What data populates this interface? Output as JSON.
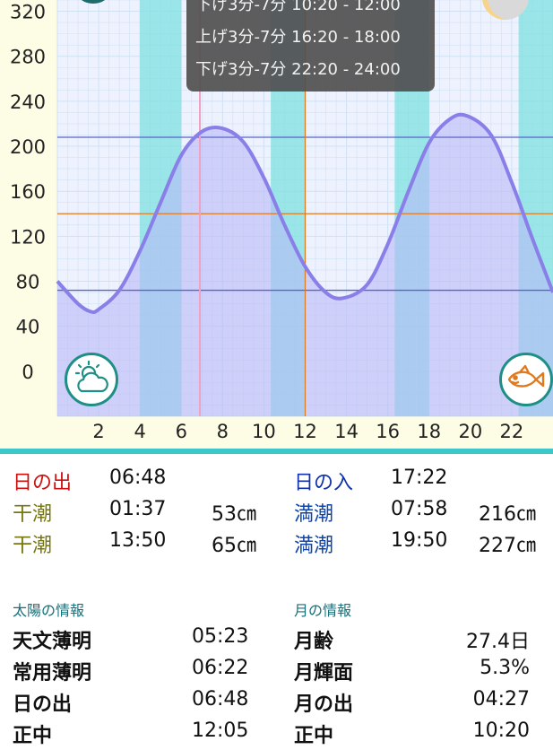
{
  "chart_data": {
    "type": "area",
    "x": [
      0,
      1,
      1.617,
      2,
      3,
      4,
      5,
      6,
      7,
      7.967,
      9,
      10,
      11,
      12,
      13,
      13.833,
      15,
      16,
      17,
      18,
      19,
      19.833,
      21,
      22,
      23,
      24
    ],
    "y": [
      80,
      60,
      53,
      55,
      72,
      107,
      150,
      192,
      213,
      216,
      204,
      172,
      130,
      93,
      70,
      65,
      77,
      113,
      160,
      203,
      224,
      227,
      210,
      168,
      118,
      70
    ],
    "xlim": [
      0,
      24
    ],
    "ylim": [
      -40,
      330
    ],
    "xticks": [
      "2",
      "4",
      "6",
      "8",
      "10",
      "12",
      "14",
      "16",
      "18",
      "20",
      "22"
    ],
    "yticks": [
      "320",
      "280",
      "240",
      "200",
      "160",
      "120",
      "80",
      "40",
      "0"
    ],
    "hlines": [
      {
        "y": 208,
        "color": "#5b63c8"
      },
      {
        "y": 140,
        "color": "#e07a1f"
      },
      {
        "y": 72,
        "color": "#5b63c8"
      }
    ],
    "current_time_line": 6.9,
    "noon_line": 12,
    "shaded_periods": [
      [
        4,
        6
      ],
      [
        10.333,
        12
      ],
      [
        16.333,
        18
      ],
      [
        22.333,
        24
      ]
    ],
    "colors": {
      "curve": "#8a7fe8",
      "fill": "#b9b9f7",
      "shade": "#7de0e0",
      "grid": "#cfe1f3",
      "plot_bg": "#eef2ff"
    }
  },
  "tooltip": {
    "lines": [
      "下げ3分-7分 10:20 - 12:00",
      "上げ3分-7分 16:20 - 18:00",
      "下げ3分-7分 22:20 - 24:00"
    ]
  },
  "icons": {
    "weather": "partly-cloudy-icon",
    "fish": "fish-icon",
    "moon": "moon-phase-icon"
  },
  "tide_table": {
    "sunrise_label": "日の出",
    "sunrise_time": "06:48",
    "sunset_label": "日の入",
    "sunset_time": "17:22",
    "low1_label": "干潮",
    "low1_time": "01:37",
    "low1_height": "53㎝",
    "high1_label": "満潮",
    "high1_time": "07:58",
    "high1_height": "216㎝",
    "low2_label": "干潮",
    "low2_time": "13:50",
    "low2_height": "65㎝",
    "high2_label": "満潮",
    "high2_time": "19:50",
    "high2_height": "227㎝"
  },
  "sun_info": {
    "title": "太陽の情報",
    "rows": [
      {
        "label": "天文薄明",
        "value": "05:23"
      },
      {
        "label": "常用薄明",
        "value": "06:22"
      },
      {
        "label": "日の出",
        "value": "06:48"
      },
      {
        "label": "正中",
        "value": "12:05"
      }
    ]
  },
  "moon_info": {
    "title": "月の情報",
    "rows": [
      {
        "label": "月齢",
        "value": "27.4日"
      },
      {
        "label": "月輝面",
        "value": "5.3%"
      },
      {
        "label": "月の出",
        "value": "04:27"
      },
      {
        "label": "正中",
        "value": "10:20"
      }
    ]
  }
}
